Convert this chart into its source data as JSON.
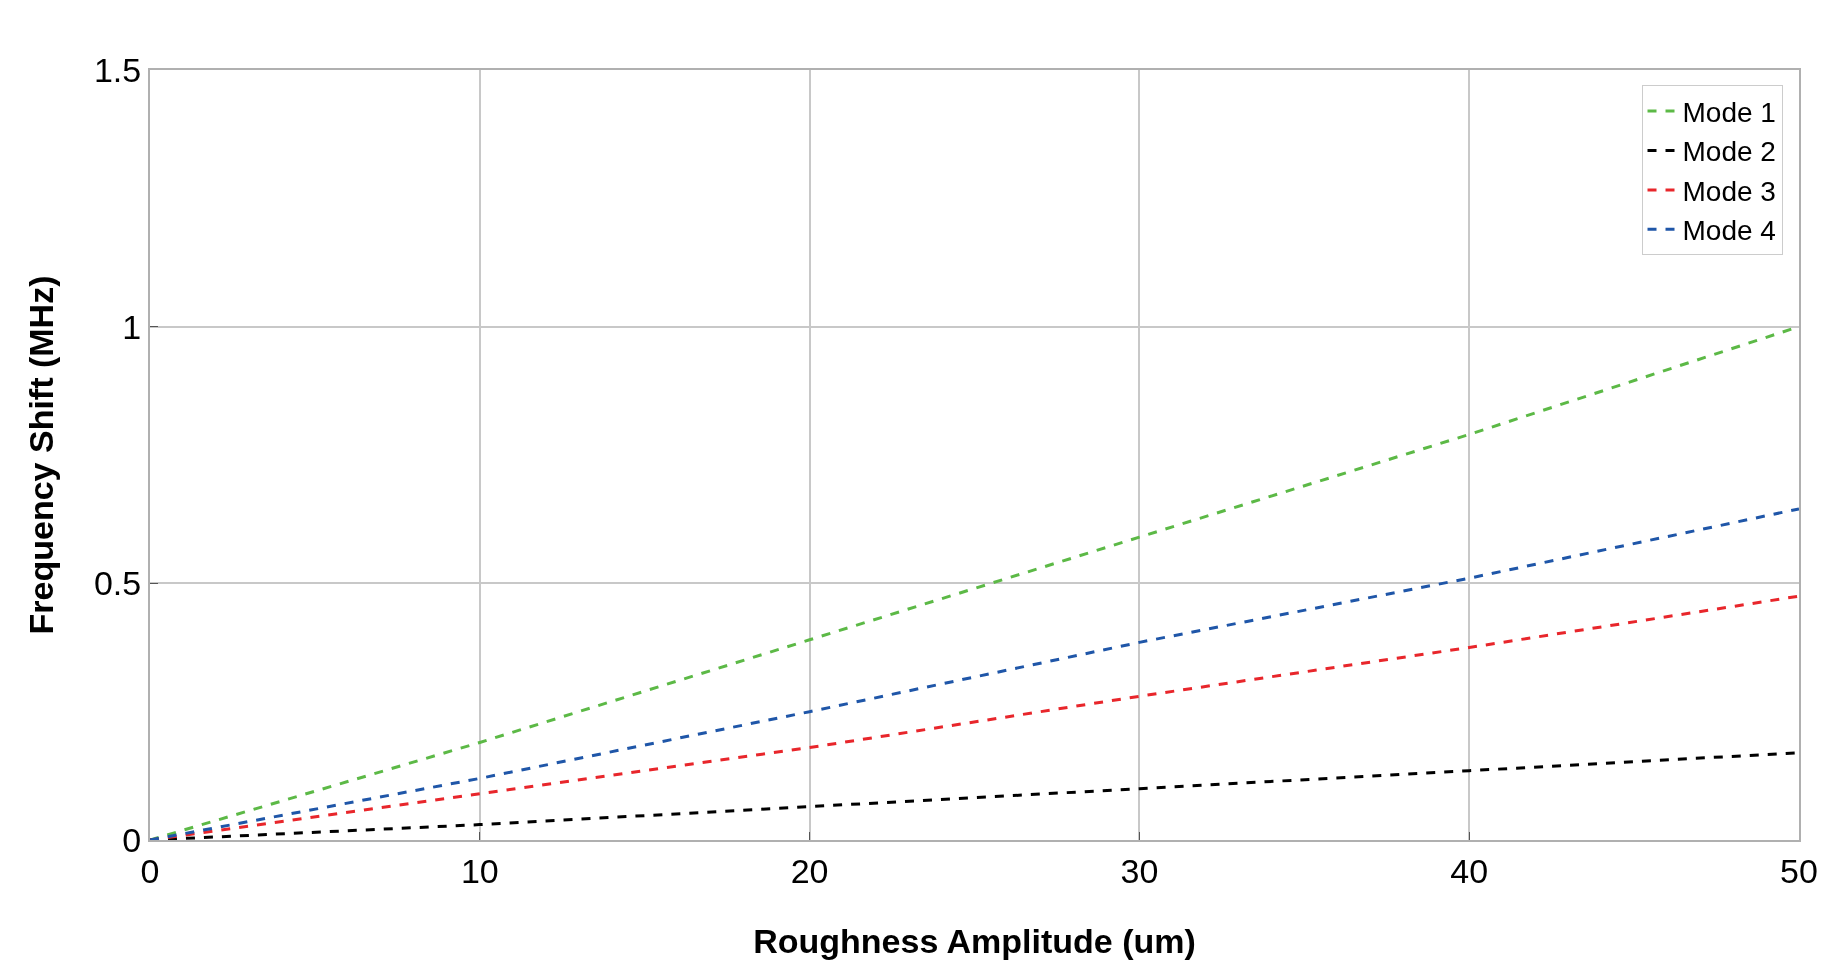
{
  "chart_data": {
    "type": "line",
    "xlabel": "Roughness Amplitude (um)",
    "ylabel": "Frequency Shift (MHz)",
    "x": [
      0,
      10,
      20,
      30,
      40,
      50
    ],
    "series": [
      {
        "name": "Mode 1",
        "color": "#5cb946",
        "values": [
          0,
          0.19,
          0.39,
          0.59,
          0.79,
          1.0
        ]
      },
      {
        "name": "Mode 2",
        "color": "#000000",
        "values": [
          0,
          0.03,
          0.065,
          0.1,
          0.135,
          0.17
        ]
      },
      {
        "name": "Mode 3",
        "color": "#e8262b",
        "values": [
          0,
          0.09,
          0.18,
          0.28,
          0.375,
          0.475
        ]
      },
      {
        "name": "Mode 4",
        "color": "#1f56a8",
        "values": [
          0,
          0.12,
          0.25,
          0.385,
          0.51,
          0.645
        ]
      }
    ],
    "xlim": [
      0,
      50
    ],
    "xticks": [
      0,
      10,
      20,
      30,
      40,
      50
    ],
    "ylim": [
      0,
      1.5
    ],
    "yticks": [
      0,
      0.5,
      1,
      1.5
    ],
    "grid": true,
    "legend": "top right",
    "marker": "none",
    "line_style": "dashed"
  }
}
